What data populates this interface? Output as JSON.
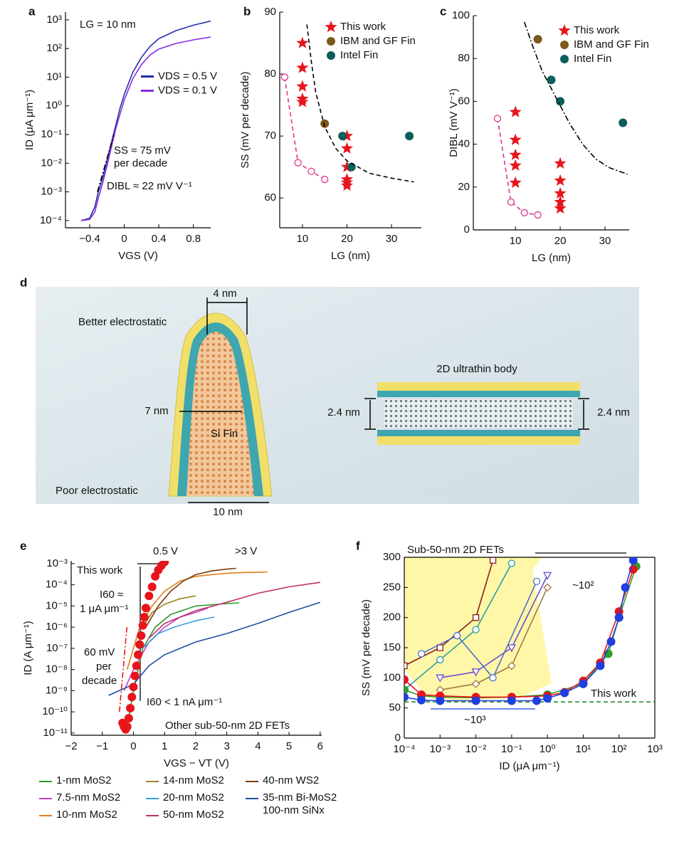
{
  "chart_data": [
    {
      "type": "line",
      "panel": "a",
      "xlabel": "VGS (V)",
      "ylabel": "ID (μA μm⁻¹)",
      "yscale": "log",
      "legend": "center right",
      "xlim": [
        -0.68,
        1.0
      ],
      "ylim": [
        5.6e-05,
        1860
      ],
      "xticks": [
        {
          "value": -0.4,
          "label": "−0.4"
        },
        0,
        0.4,
        0.8
      ],
      "yticks": [
        {
          "value": 0.0001,
          "label": "10⁻⁴"
        },
        {
          "value": 0.001,
          "label": "10⁻³"
        },
        {
          "value": 0.01,
          "label": "10⁻²"
        },
        {
          "value": 0.1,
          "label": "10⁻¹"
        },
        {
          "value": 1,
          "label": "10⁰"
        },
        {
          "value": 10,
          "label": "10¹"
        },
        {
          "value": 100,
          "label": "10²"
        },
        {
          "value": 1000,
          "label": "10³"
        }
      ],
      "series": [
        {
          "name": "VDS = 0.5 V",
          "color": "#1f2fa8",
          "line": "solid",
          "marker": "none",
          "x": [
            -0.5,
            -0.4,
            -0.34,
            -0.3,
            -0.25,
            -0.2,
            -0.15,
            -0.1,
            -0.05,
            0,
            0.1,
            0.2,
            0.3,
            0.4,
            0.6,
            0.8,
            1.0
          ],
          "values": [
            0.0001,
            0.00012,
            0.0003,
            0.001,
            0.003,
            0.012,
            0.05,
            0.2,
            0.8,
            2.5,
            15,
            50,
            120,
            220,
            420,
            650,
            900
          ]
        },
        {
          "name": "VDS = 0.1 V",
          "color": "#8a2be2",
          "line": "solid",
          "marker": "none",
          "x": [
            -0.5,
            -0.4,
            -0.34,
            -0.3,
            -0.25,
            -0.2,
            -0.15,
            -0.1,
            -0.05,
            0,
            0.1,
            0.2,
            0.3,
            0.4,
            0.6,
            0.8,
            1.0
          ],
          "values": [
            0.0001,
            0.00011,
            0.0002,
            0.0006,
            0.002,
            0.008,
            0.035,
            0.15,
            0.5,
            1.6,
            9,
            28,
            60,
            95,
            150,
            200,
            250
          ]
        },
        {
          "color": "#000000",
          "line": "dashdot",
          "marker": "none",
          "x": [
            -0.31,
            -0.12
          ],
          "values": [
            0.001,
            0.1
          ]
        }
      ],
      "annotations": [
        "LG = 10 nm",
        "SS ≈ 75 mV",
        "per decade",
        "DIBL ≈ 22 mV V⁻¹"
      ]
    },
    {
      "type": "scatter",
      "panel": "b",
      "xlabel": "LG (nm)",
      "ylabel": "SS (mV per decade)",
      "legend": "upper right",
      "xlim": [
        4.9,
        36.7
      ],
      "ylim": [
        55.2,
        90
      ],
      "xticks": [
        10,
        20,
        30
      ],
      "yticks": [
        60,
        70,
        80,
        90
      ],
      "series": [
        {
          "name": "This work",
          "color": "#e8141c",
          "line": "none",
          "marker": "star",
          "x": [
            10,
            10,
            10,
            10,
            10,
            20,
            20,
            20,
            20,
            20,
            20
          ],
          "values": [
            85,
            81,
            78,
            76,
            75.5,
            70,
            68,
            65,
            63,
            62.5,
            62
          ]
        },
        {
          "name": "IBM and GF Fin",
          "color": "#7a5a1a",
          "line": "none",
          "marker": "dot",
          "x": [
            15
          ],
          "values": [
            72
          ]
        },
        {
          "name": "Intel Fin",
          "color": "#0b5e5b",
          "line": "none",
          "marker": "dot",
          "x": [
            19,
            21,
            34
          ],
          "values": [
            70,
            65,
            70
          ]
        },
        {
          "color": "#e0358f",
          "line": "dashed",
          "marker": "open-circle",
          "x": [
            6,
            9,
            12,
            15
          ],
          "values": [
            79.5,
            65.7,
            64.3,
            63
          ]
        },
        {
          "color": "#000000",
          "line": "dashed",
          "marker": "none",
          "x": [
            11,
            12,
            13,
            15,
            17.5,
            20,
            25,
            30,
            35
          ],
          "values": [
            88,
            82,
            77,
            71.5,
            68,
            66,
            64,
            63.2,
            62.6
          ]
        }
      ]
    },
    {
      "type": "scatter",
      "panel": "c",
      "xlabel": "LG (nm)",
      "ylabel": "DIBL (mV V⁻¹)",
      "legend": "upper right",
      "xlim": [
        0.6,
        35.4
      ],
      "ylim": [
        0,
        100
      ],
      "xticks": [
        10,
        20,
        30
      ],
      "yticks": [
        0,
        20,
        40,
        60,
        80,
        100
      ],
      "series": [
        {
          "name": "This work",
          "color": "#e8141c",
          "line": "none",
          "marker": "star",
          "x": [
            10,
            10,
            10,
            10,
            10,
            20,
            20,
            20,
            20,
            20
          ],
          "values": [
            55,
            42,
            35,
            30,
            22,
            31,
            23,
            17,
            13,
            10
          ]
        },
        {
          "name": "IBM and GF Fin",
          "color": "#7a5a1a",
          "line": "none",
          "marker": "dot",
          "x": [
            15
          ],
          "values": [
            89
          ]
        },
        {
          "name": "Intel Fin",
          "color": "#0b5e5b",
          "line": "none",
          "marker": "dot",
          "x": [
            18,
            20,
            34
          ],
          "values": [
            70,
            60,
            50
          ]
        },
        {
          "color": "#e0358f",
          "line": "dashed",
          "marker": "open-circle",
          "x": [
            6,
            9,
            12,
            15
          ],
          "values": [
            52,
            13,
            8,
            7
          ]
        },
        {
          "color": "#000000",
          "line": "dashdot",
          "marker": "none",
          "x": [
            12,
            14,
            16,
            18,
            20,
            22,
            25,
            28,
            31,
            35
          ],
          "values": [
            97,
            85,
            74,
            66,
            58,
            50,
            40,
            33,
            29,
            26
          ]
        }
      ]
    },
    {
      "type": "line",
      "panel": "e",
      "xlabel": "VGS − VT (V)",
      "ylabel": "ID (A μm⁻¹)",
      "yscale": "log",
      "legend": "below",
      "xlim": [
        -2,
        6.05
      ],
      "ylim": [
        7.9e-12,
        0.00135
      ],
      "xticks": [
        {
          "value": -2,
          "label": "−2"
        },
        {
          "value": -1,
          "label": "−1"
        },
        0,
        1,
        2,
        3,
        4,
        5,
        6
      ],
      "yticks": [
        {
          "value": 1e-11,
          "label": "10⁻¹¹"
        },
        {
          "value": 1e-10,
          "label": "10⁻¹⁰"
        },
        {
          "value": 1e-09,
          "label": "10⁻⁹"
        },
        {
          "value": 1e-08,
          "label": "10⁻⁸"
        },
        {
          "value": 1e-07,
          "label": "10⁻⁷"
        },
        {
          "value": 1e-06,
          "label": "10⁻⁶"
        },
        {
          "value": 1e-05,
          "label": "10⁻⁵"
        },
        {
          "value": 0.0001,
          "label": "10⁻⁴"
        },
        {
          "value": 0.001,
          "label": "10⁻³"
        }
      ],
      "series": [
        {
          "name": "1-nm MoS2",
          "color": "#2a9a2a",
          "line": "solid",
          "marker": "none",
          "x": [
            -0.4,
            -0.2,
            0,
            0.3,
            0.7,
            1.2,
            2,
            3,
            3.4
          ],
          "values": [
            3e-11,
            2e-11,
            1e-09,
            1e-07,
            1e-06,
            4e-06,
            1e-05,
            1.3e-05,
            1.4e-05
          ]
        },
        {
          "name": "7.5-nm MoS2",
          "color": "#c040c0",
          "line": "solid",
          "marker": "none",
          "x": [
            -0.3,
            0,
            0.5,
            1,
            1.5,
            2,
            2.4
          ],
          "values": [
            1e-09,
            1e-08,
            2e-07,
            1e-06,
            3e-06,
            5e-06,
            8e-06
          ]
        },
        {
          "name": "10-nm MoS2",
          "color": "#e08020",
          "line": "solid",
          "marker": "none",
          "x": [
            -0.2,
            0.2,
            0.6,
            1,
            1.5,
            2,
            2.5,
            3,
            3.5,
            4.3
          ],
          "values": [
            1e-08,
            1e-06,
            1e-05,
            5e-05,
            0.00015,
            0.00025,
            0.0003,
            0.00035,
            0.00038,
            0.0004
          ]
        },
        {
          "name": "14-nm MoS2",
          "color": "#a08020",
          "line": "solid",
          "marker": "none",
          "x": [
            0.3,
            0.6,
            1,
            1.5,
            2
          ],
          "values": [
            1e-06,
            5e-06,
            1.2e-05,
            2.2e-05,
            3e-05
          ]
        },
        {
          "name": "20-nm MoS2",
          "color": "#3aa0e0",
          "line": "solid",
          "marker": "none",
          "x": [
            0.3,
            0.8,
            1.3,
            2,
            2.6
          ],
          "values": [
            1e-07,
            5e-07,
            1e-06,
            2e-06,
            3e-06
          ]
        },
        {
          "name": "50-nm MoS2",
          "color": "#c0306a",
          "line": "solid",
          "marker": "none",
          "x": [
            0.5,
            1,
            1.5,
            2,
            3,
            4,
            5,
            6
          ],
          "values": [
            3e-07,
            1.5e-06,
            3e-06,
            6e-06,
            1.5e-05,
            4e-05,
            8e-05,
            0.00013
          ]
        },
        {
          "name": "40-nm WS2",
          "color": "#7a3a10",
          "line": "solid",
          "marker": "none",
          "x": [
            0.4,
            0.8,
            1.2,
            1.6,
            2,
            2.5,
            3,
            3.3
          ],
          "values": [
            1e-06,
            1e-05,
            5e-05,
            0.00015,
            0.0003,
            0.00045,
            0.00055,
            0.0006
          ]
        },
        {
          "name": "35-nm Bi-MoS2 100-nm SiNx",
          "color": "#1f4f9f",
          "line": "solid",
          "marker": "none",
          "x": [
            -0.8,
            0,
            0.5,
            1,
            1.5,
            2,
            3,
            4,
            5,
            6
          ],
          "values": [
            6e-10,
            2e-09,
            1.5e-08,
            5e-08,
            1e-07,
            2e-07,
            5e-07,
            1.5e-06,
            5e-06,
            1.5e-05
          ]
        },
        {
          "color": "#e8141c",
          "line": "none",
          "marker": "dot",
          "x": [
            -0.35,
            -0.3,
            -0.25,
            -0.2,
            -0.15,
            -0.1,
            -0.05,
            0,
            0.05,
            0.1,
            0.15,
            0.2,
            0.25,
            0.3,
            0.35,
            0.4,
            0.5,
            0.6,
            0.7,
            0.8,
            0.9,
            1.0
          ],
          "values": [
            3e-11,
            2e-11,
            1.5e-11,
            2e-11,
            5e-11,
            1.5e-10,
            5e-10,
            1.5e-09,
            5e-09,
            1.5e-08,
            5e-08,
            1.5e-07,
            4e-07,
            1.2e-06,
            3e-06,
            8e-06,
            3e-05,
            8e-05,
            0.00025,
            0.0005,
            0.0008,
            0.0012
          ]
        },
        {
          "color": "#e8141c",
          "line": "dashdot",
          "marker": "none",
          "x": [
            -0.45,
            -0.21
          ],
          "values": [
            1e-10,
            1e-06
          ]
        }
      ],
      "annotations": [
        "0.5 V",
        ">3 V",
        "This work",
        "I60 ≈",
        "1 μA μm⁻¹",
        "60 mV",
        "per",
        "decade",
        "I60 < 1 nA μm⁻¹",
        "Other sub-50-nm 2D FETs"
      ]
    },
    {
      "type": "scatter",
      "panel": "f",
      "xlabel": "ID (μA μm⁻¹)",
      "ylabel": "SS (mV per decade)",
      "xscale": "log",
      "frame": "box",
      "xlim": [
        0.0001,
        1000
      ],
      "ylim": [
        0,
        300
      ],
      "xticks": [
        {
          "value": 0.0001,
          "label": "10⁻⁴"
        },
        {
          "value": 0.001,
          "label": "10⁻³"
        },
        {
          "value": 0.01,
          "label": "10⁻²"
        },
        {
          "value": 0.1,
          "label": "10⁻¹"
        },
        {
          "value": 1,
          "label": "10⁰"
        },
        {
          "value": 10,
          "label": "10¹"
        },
        {
          "value": 100,
          "label": "10²"
        },
        {
          "value": 1000,
          "label": "10³"
        }
      ],
      "yticks": [
        0,
        50,
        100,
        150,
        200,
        250,
        300
      ],
      "series": [
        {
          "color": "#8b1a1a",
          "line": "solid",
          "marker": "open-square",
          "x": [
            0.0001,
            0.001,
            0.01,
            0.03
          ],
          "values": [
            120,
            150,
            200,
            295
          ]
        },
        {
          "color": "#2aa0a0",
          "line": "solid",
          "marker": "open-circle",
          "x": [
            0.0001,
            0.001,
            0.01,
            0.1
          ],
          "values": [
            80,
            130,
            180,
            290
          ]
        },
        {
          "color": "#6a4ad0",
          "line": "solid",
          "marker": "open-triangle",
          "x": [
            0.001,
            0.01,
            0.1,
            1
          ],
          "values": [
            100,
            110,
            150,
            270
          ]
        },
        {
          "color": "#a07840",
          "line": "solid",
          "marker": "open-diamond",
          "x": [
            0.001,
            0.01,
            0.1,
            1
          ],
          "values": [
            80,
            90,
            120,
            250
          ]
        },
        {
          "color": "#4a70d0",
          "line": "solid",
          "marker": "open-circle",
          "x": [
            0.0003,
            0.003,
            0.03,
            0.5
          ],
          "values": [
            140,
            170,
            100,
            260
          ]
        },
        {
          "color": "#2a8a2a",
          "line": "dashed",
          "marker": "none",
          "x": [
            0.0001,
            1000
          ],
          "values": [
            60,
            60
          ]
        },
        {
          "color": "#2ca02c",
          "line": "solid",
          "marker": "dot",
          "x": [
            0.0001,
            0.0003,
            0.001,
            0.01,
            0.1,
            1,
            10,
            50,
            100,
            300
          ],
          "values": [
            80,
            70,
            68,
            67,
            68,
            72,
            90,
            140,
            200,
            285
          ]
        },
        {
          "color": "#e8141c",
          "line": "solid",
          "marker": "dot",
          "x": [
            0.0001,
            0.0003,
            0.001,
            0.01,
            0.1,
            1,
            3,
            10,
            30,
            100,
            250
          ],
          "values": [
            97,
            72,
            70,
            68,
            68,
            70,
            76,
            95,
            125,
            210,
            280
          ]
        },
        {
          "color": "#1f3fe0",
          "line": "solid",
          "marker": "dot",
          "x": [
            0.0001,
            0.0003,
            0.001,
            0.01,
            0.1,
            0.5,
            1,
            3,
            10,
            30,
            60,
            100,
            150,
            250
          ],
          "values": [
            68,
            63,
            62,
            62,
            62,
            62,
            66,
            75,
            90,
            120,
            160,
            200,
            250,
            295
          ]
        }
      ],
      "annotations": [
        "Sub-50-nm 2D FETs",
        "~10²",
        "~10³",
        "This work"
      ]
    }
  ],
  "diagram": {
    "panel": "d",
    "labels": [
      "Better electrostatic",
      "4 nm",
      "7 nm",
      "Si Fin",
      "Poor electrostatic",
      "10 nm",
      "2D ultrathin body",
      "2.4 nm",
      "2.4 nm"
    ]
  }
}
